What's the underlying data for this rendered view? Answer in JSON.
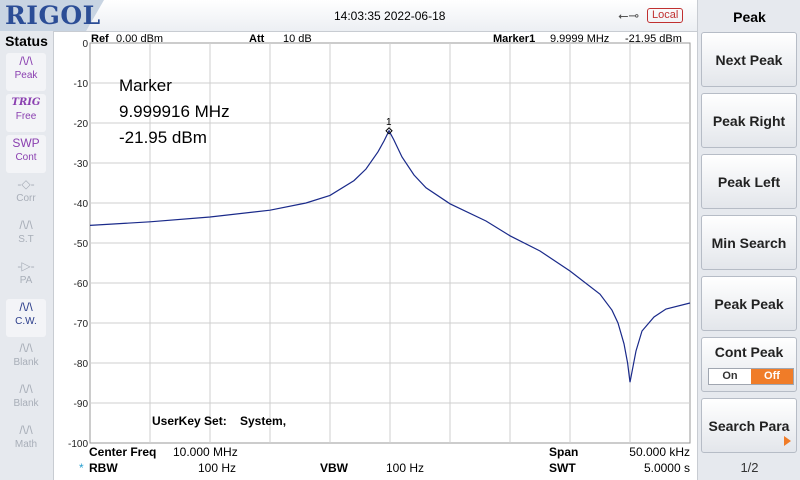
{
  "header": {
    "logo": "RIGOL",
    "datetime": "14:03:35 2022-06-18",
    "usb_icon": "usb-icon",
    "remote_status": "Local"
  },
  "status_panel": {
    "title": "Status",
    "items": [
      {
        "icon": "peak-icon",
        "glyph": "/\\/\\",
        "label": "Peak",
        "color": "#8a3fb0",
        "active": true
      },
      {
        "icon": "trig-icon",
        "glyph": "TRIG",
        "label": "Free",
        "color": "#8a3fb0",
        "active": true
      },
      {
        "icon": "swp-icon",
        "glyph": "SWP",
        "label": "Cont",
        "color": "#8a3fb0",
        "active": true
      },
      {
        "icon": "corr-icon",
        "glyph": "-◇-",
        "label": "Corr",
        "color": "#a8aeb8",
        "active": false
      },
      {
        "icon": "source-tracking-icon",
        "glyph": "/\\/\\",
        "label": "S.T",
        "color": "#a8aeb8",
        "active": false
      },
      {
        "icon": "preamp-icon",
        "glyph": "-▷-",
        "label": "PA",
        "color": "#a8aeb8",
        "active": false
      },
      {
        "icon": "clear-write-icon",
        "glyph": "/\\/\\",
        "label": "C.W.",
        "color": "#2a3c8a",
        "active": true
      },
      {
        "icon": "blank-trace-icon",
        "glyph": "/\\/\\",
        "label": "Blank",
        "color": "#a8aeb8",
        "active": false
      },
      {
        "icon": "blank-trace-icon",
        "glyph": "/\\/\\",
        "label": "Blank",
        "color": "#a8aeb8",
        "active": false
      },
      {
        "icon": "math-icon",
        "glyph": "/\\/\\",
        "label": "Math",
        "color": "#a8aeb8",
        "active": false
      }
    ]
  },
  "graticule": {
    "ref_label": "Ref",
    "ref_value": "0.00 dBm",
    "att_label": "Att",
    "att_value": "10 dB",
    "marker_label": "Marker1",
    "marker_freq": "9.9999 MHz",
    "marker_level": "-21.95 dBm",
    "y_ticks": [
      "0",
      "-10",
      "-20",
      "-30",
      "-40",
      "-50",
      "-60",
      "-70",
      "-80",
      "-90",
      "-100"
    ],
    "marker_box": {
      "title": "Marker",
      "freq": "9.999916 MHz",
      "level": "-21.95 dBm"
    },
    "marker_number": "1",
    "userkey_label": "UserKey Set:",
    "userkey_value": "System,",
    "center_label": "Center Freq",
    "center_value": "10.000 MHz",
    "span_label": "Span",
    "span_value": "50.000 kHz",
    "rbw_star": "*",
    "rbw_label": "RBW",
    "rbw_value": "100 Hz",
    "vbw_label": "VBW",
    "vbw_value": "100 Hz",
    "swt_label": "SWT",
    "swt_value": "5.0000 s"
  },
  "chart_data": {
    "type": "line",
    "x_unit": "MHz",
    "y_unit": "dBm",
    "xlim": [
      9.975,
      10.025
    ],
    "ylim": [
      -100,
      0
    ],
    "grid": true,
    "trace_color": "#1a2a8a",
    "series": [
      {
        "x": [
          9.975,
          9.98,
          9.985,
          9.99,
          9.993,
          9.995,
          9.997,
          9.998,
          9.999,
          9.9995,
          9.99992,
          10.0003,
          10.001,
          10.002,
          10.003,
          10.005,
          10.008,
          10.01,
          10.0125,
          10.015,
          10.0175,
          10.0185,
          10.019,
          10.0195,
          10.0198,
          10.02,
          10.0205,
          10.021,
          10.022,
          10.023,
          10.025
        ],
        "y": [
          -45.6,
          -44.7,
          -43.5,
          -41.8,
          -40.0,
          -38.1,
          -34.4,
          -31.5,
          -27.2,
          -24.5,
          -21.95,
          -24.1,
          -28.5,
          -33.0,
          -36.2,
          -40.2,
          -44.5,
          -48.2,
          -52.0,
          -57.0,
          -62.8,
          -66.8,
          -70.0,
          -75.2,
          -80.0,
          -84.8,
          -77.0,
          -72.0,
          -68.5,
          -66.5,
          -65.0
        ]
      }
    ],
    "marker": {
      "x": 9.99992,
      "y": -21.95
    }
  },
  "softkeys": {
    "title": "Peak",
    "keys": [
      {
        "label": "Next Peak"
      },
      {
        "label": "Peak Right"
      },
      {
        "label": "Peak Left"
      },
      {
        "label": "Min Search"
      },
      {
        "label": "Peak Peak"
      },
      {
        "label": "Cont Peak",
        "on": "On",
        "off": "Off",
        "selected": "off"
      },
      {
        "label": "Search Para",
        "has_submenu": true
      }
    ],
    "page": "1/2"
  }
}
